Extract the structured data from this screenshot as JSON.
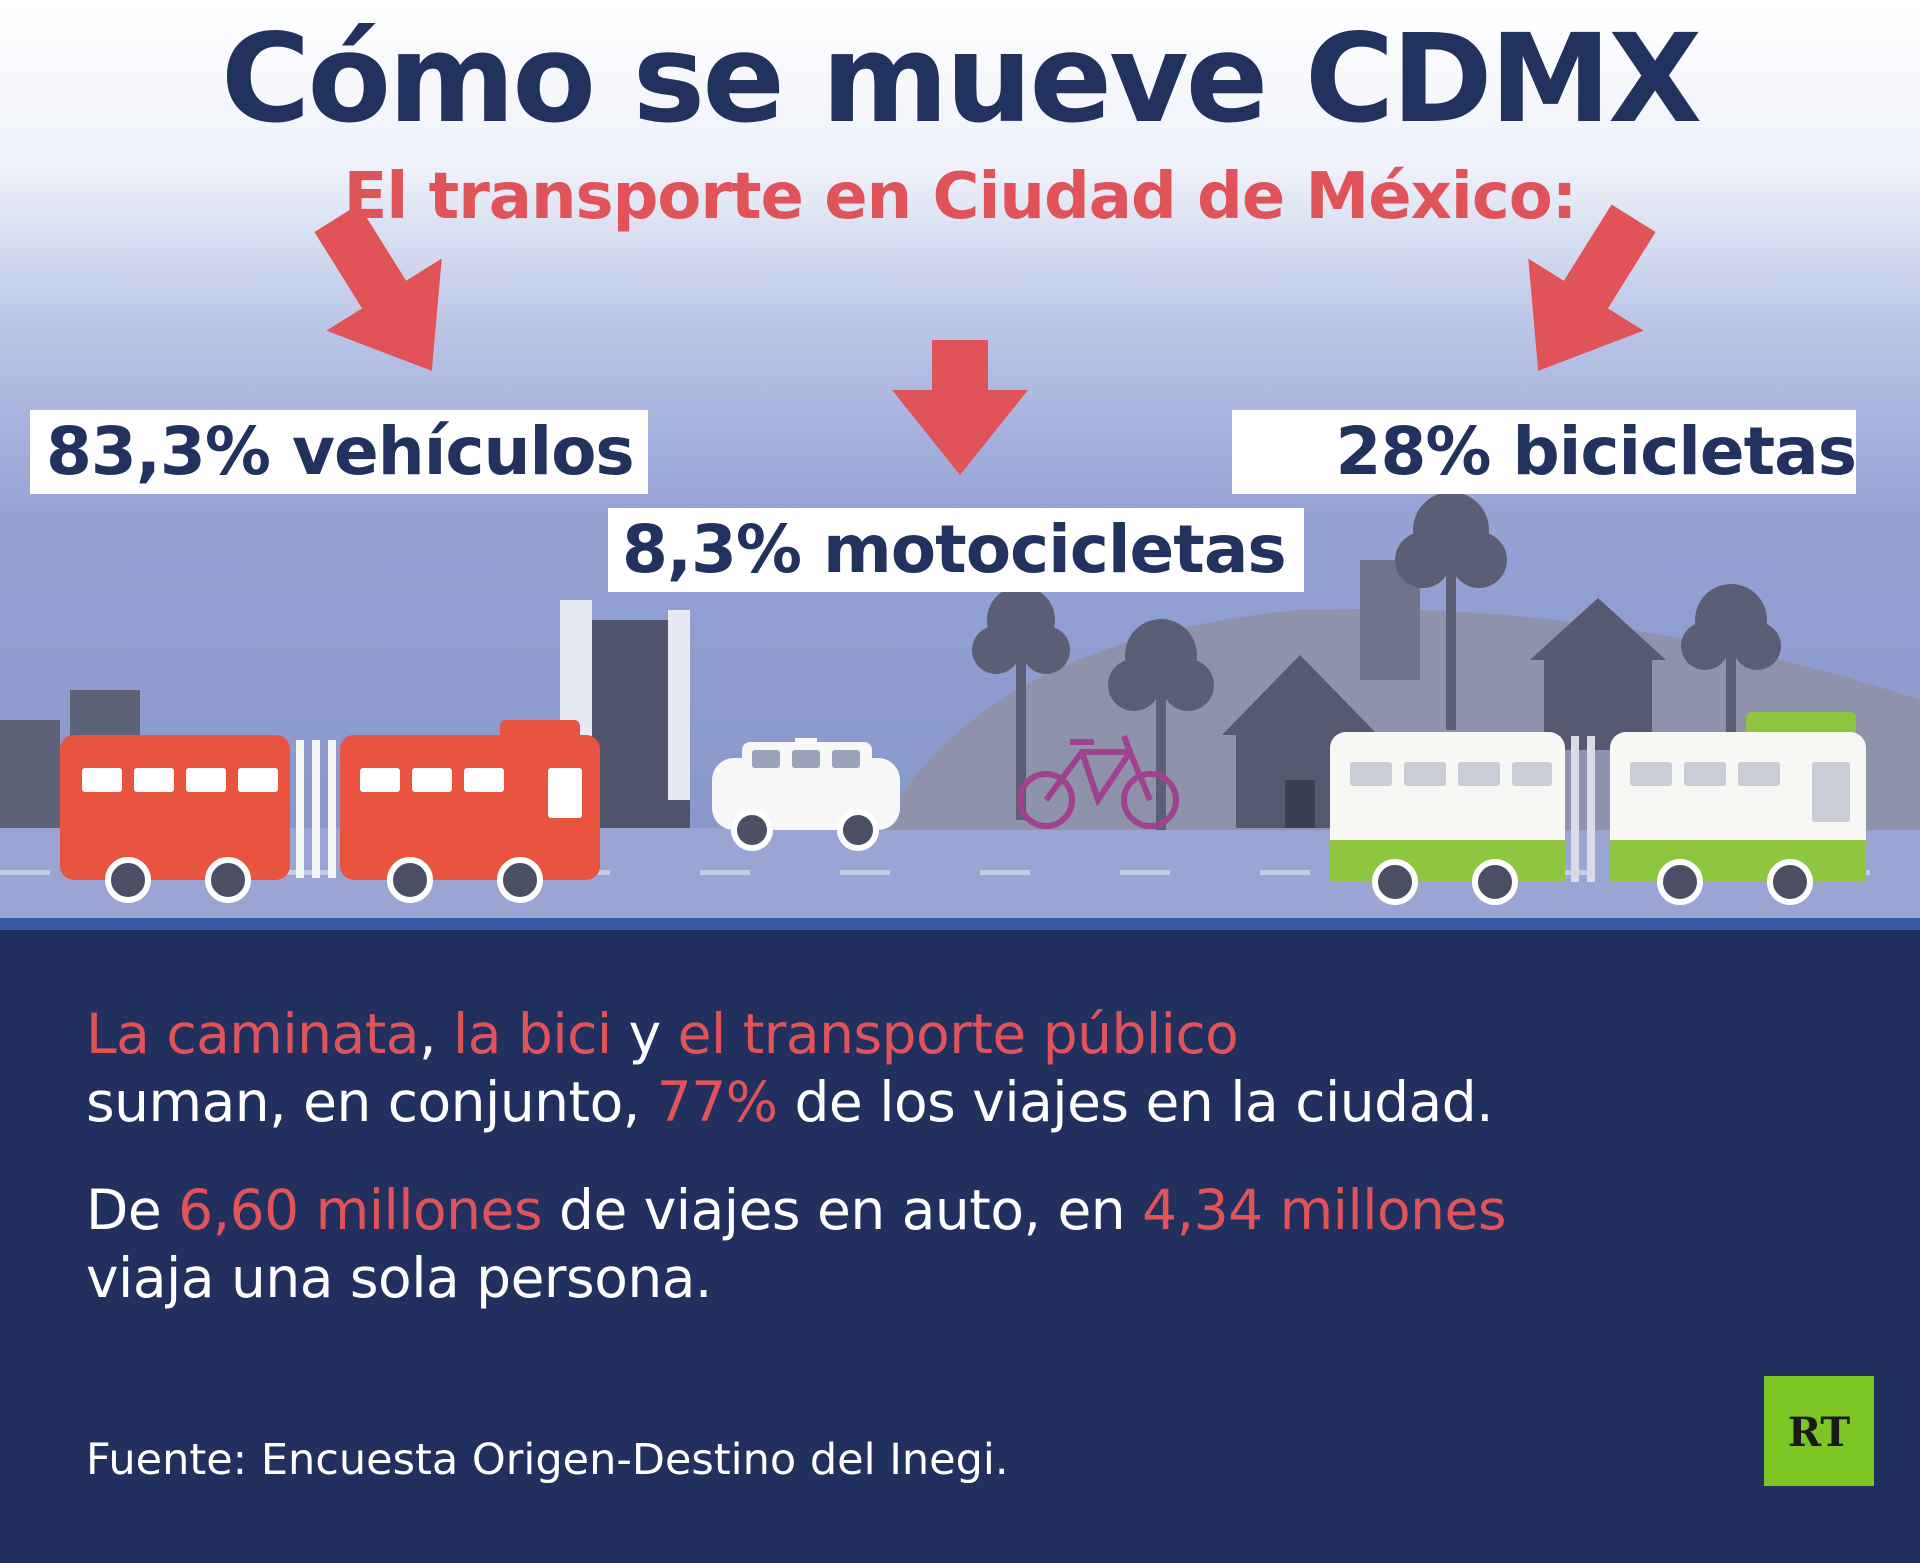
{
  "header": {
    "title": "Cómo se mueve CDMX",
    "subtitle": "El transporte en Ciudad de México:"
  },
  "stats": {
    "vehiculos": "83,3% vehículos",
    "motocicletas": "8,3% motocicletas",
    "bicicletas": "28% bicicletas"
  },
  "body": {
    "para1": {
      "seg1": "La caminata",
      "seg2": ", ",
      "seg3": "la bici",
      "seg4": " y ",
      "seg5": "el transporte público",
      "seg6": "suman, en conjunto, ",
      "seg7": "77%",
      "seg8": " de los viajes en la ciudad."
    },
    "para2": {
      "seg1": "De ",
      "seg2": "6,60 millones",
      "seg3": " de viajes en auto, en ",
      "seg4": "4,34 millones",
      "seg5": "viaja una sola persona."
    }
  },
  "footer": {
    "source": "Fuente: Encuesta Origen-Destino del Inegi.",
    "logo_text": "RT"
  },
  "colors": {
    "navy": "#22325f",
    "accent_red": "#e05459",
    "bottom_panel": "#21305e",
    "logo_green": "#7cc523"
  },
  "icons": [
    "arrow-down-icon",
    "bus-icon",
    "car-icon",
    "bicycle-icon",
    "tree-icon",
    "house-icon"
  ]
}
